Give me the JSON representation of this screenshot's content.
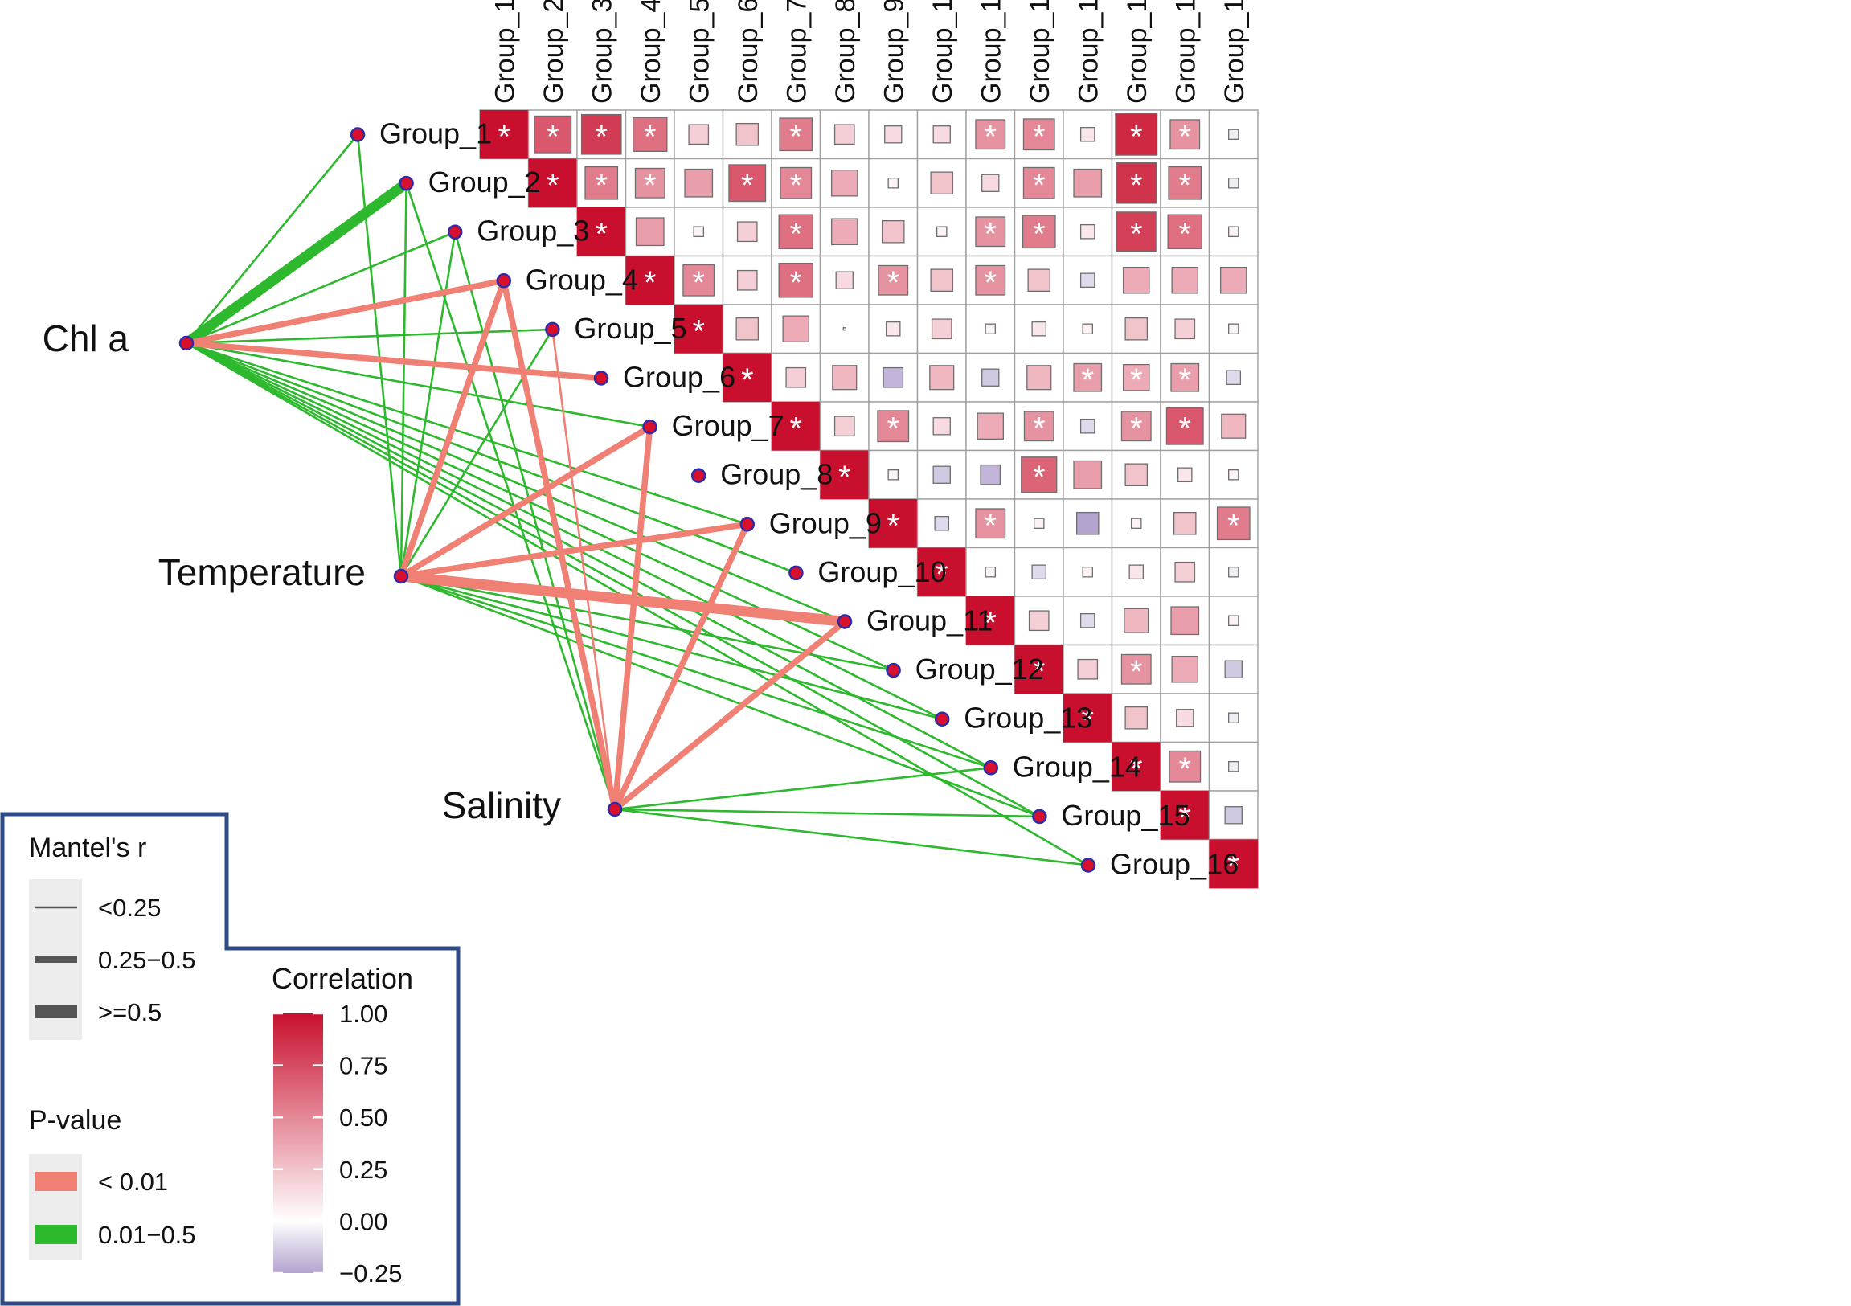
{
  "chart_data": {
    "type": "heatmap",
    "groups": [
      "Group_1",
      "Group_2",
      "Group_3",
      "Group_4",
      "Group_5",
      "Group_6",
      "Group_7",
      "Group_8",
      "Group_9",
      "Group_10",
      "Group_11",
      "Group_12",
      "Group_13",
      "Group_14",
      "Group_15",
      "Group_16"
    ],
    "correlation": [
      [
        1.0,
        0.7,
        0.82,
        0.6,
        0.2,
        0.25,
        0.55,
        0.2,
        0.15,
        0.15,
        0.45,
        0.5,
        0.1,
        0.9,
        0.45,
        -0.05
      ],
      [
        null,
        1.0,
        0.55,
        0.45,
        0.4,
        0.7,
        0.5,
        0.35,
        0.05,
        0.25,
        0.15,
        0.5,
        0.4,
        0.85,
        0.55,
        -0.05
      ],
      [
        null,
        null,
        1.0,
        0.4,
        0.05,
        0.2,
        0.6,
        0.35,
        0.25,
        0.05,
        0.45,
        0.55,
        0.1,
        0.8,
        0.6,
        0.05
      ],
      [
        null,
        null,
        null,
        1.0,
        0.5,
        0.2,
        0.6,
        0.15,
        0.45,
        0.25,
        0.45,
        0.25,
        -0.1,
        0.35,
        0.35,
        0.35
      ],
      [
        null,
        null,
        null,
        null,
        1.0,
        0.25,
        0.35,
        0.0,
        0.1,
        0.2,
        0.05,
        0.1,
        0.05,
        0.25,
        0.2,
        0.05
      ],
      [
        null,
        null,
        null,
        null,
        null,
        1.0,
        0.2,
        0.3,
        -0.2,
        0.3,
        -0.15,
        0.3,
        0.4,
        0.35,
        0.4,
        -0.1
      ],
      [
        null,
        null,
        null,
        null,
        null,
        null,
        1.0,
        0.2,
        0.5,
        0.15,
        0.35,
        0.45,
        -0.1,
        0.45,
        0.7,
        0.3
      ],
      [
        null,
        null,
        null,
        null,
        null,
        null,
        null,
        1.0,
        0.05,
        -0.15,
        -0.2,
        0.65,
        0.4,
        0.25,
        0.1,
        0.05
      ],
      [
        null,
        null,
        null,
        null,
        null,
        null,
        null,
        null,
        1.0,
        -0.1,
        0.45,
        0.05,
        -0.25,
        0.05,
        0.25,
        0.55
      ],
      [
        null,
        null,
        null,
        null,
        null,
        null,
        null,
        null,
        null,
        1.0,
        0.05,
        -0.1,
        0.05,
        0.1,
        0.2,
        -0.05
      ],
      [
        null,
        null,
        null,
        null,
        null,
        null,
        null,
        null,
        null,
        null,
        1.0,
        0.2,
        -0.1,
        0.3,
        0.4,
        0.05
      ],
      [
        null,
        null,
        null,
        null,
        null,
        null,
        null,
        null,
        null,
        null,
        null,
        1.0,
        0.2,
        0.45,
        0.35,
        -0.15
      ],
      [
        null,
        null,
        null,
        null,
        null,
        null,
        null,
        null,
        null,
        null,
        null,
        null,
        1.0,
        0.25,
        0.15,
        -0.05
      ],
      [
        null,
        null,
        null,
        null,
        null,
        null,
        null,
        null,
        null,
        null,
        null,
        null,
        null,
        1.0,
        0.5,
        -0.05
      ],
      [
        null,
        null,
        null,
        null,
        null,
        null,
        null,
        null,
        null,
        null,
        null,
        null,
        null,
        null,
        1.0,
        -0.15
      ],
      [
        null,
        null,
        null,
        null,
        null,
        null,
        null,
        null,
        null,
        null,
        null,
        null,
        null,
        null,
        null,
        1.0
      ]
    ],
    "significance_marker": "*",
    "significant": [
      [
        1,
        1,
        1,
        1,
        0,
        0,
        1,
        0,
        0,
        0,
        1,
        1,
        0,
        1,
        1,
        0
      ],
      [
        0,
        1,
        1,
        1,
        0,
        1,
        1,
        0,
        0,
        0,
        0,
        1,
        0,
        1,
        1,
        0
      ],
      [
        0,
        0,
        1,
        0,
        0,
        0,
        1,
        0,
        0,
        0,
        1,
        1,
        0,
        1,
        1,
        0
      ],
      [
        0,
        0,
        0,
        1,
        1,
        0,
        1,
        0,
        1,
        0,
        1,
        0,
        0,
        0,
        0,
        0
      ],
      [
        0,
        0,
        0,
        0,
        1,
        0,
        0,
        0,
        0,
        0,
        0,
        0,
        0,
        0,
        0,
        0
      ],
      [
        0,
        0,
        0,
        0,
        0,
        1,
        0,
        0,
        0,
        0,
        0,
        0,
        1,
        1,
        1,
        0
      ],
      [
        0,
        0,
        0,
        0,
        0,
        0,
        1,
        0,
        1,
        0,
        0,
        1,
        0,
        1,
        1,
        0
      ],
      [
        0,
        0,
        0,
        0,
        0,
        0,
        0,
        1,
        0,
        0,
        0,
        1,
        0,
        0,
        0,
        0
      ],
      [
        0,
        0,
        0,
        0,
        0,
        0,
        0,
        0,
        1,
        0,
        1,
        0,
        0,
        0,
        0,
        1
      ],
      [
        0,
        0,
        0,
        0,
        0,
        0,
        0,
        0,
        0,
        1,
        0,
        0,
        0,
        0,
        0,
        0
      ],
      [
        0,
        0,
        0,
        0,
        0,
        0,
        0,
        0,
        0,
        0,
        1,
        0,
        0,
        0,
        0,
        0
      ],
      [
        0,
        0,
        0,
        0,
        0,
        0,
        0,
        0,
        0,
        0,
        0,
        1,
        0,
        1,
        0,
        0
      ],
      [
        0,
        0,
        0,
        0,
        0,
        0,
        0,
        0,
        0,
        0,
        0,
        0,
        1,
        0,
        0,
        0
      ],
      [
        0,
        0,
        0,
        0,
        0,
        0,
        0,
        0,
        0,
        0,
        0,
        0,
        0,
        1,
        1,
        0
      ],
      [
        0,
        0,
        0,
        0,
        0,
        0,
        0,
        0,
        0,
        0,
        0,
        0,
        0,
        0,
        1,
        0
      ],
      [
        0,
        0,
        0,
        0,
        0,
        0,
        0,
        0,
        0,
        0,
        0,
        0,
        0,
        0,
        0,
        1
      ]
    ],
    "env_factors": [
      "Chl a",
      "Temperature",
      "Salinity"
    ],
    "mantel_links": [
      {
        "env": "Chl a",
        "group": 1,
        "size": "<0.25",
        "p": "0.01-0.5"
      },
      {
        "env": "Chl a",
        "group": 2,
        "size": ">=0.5",
        "p": "0.01-0.5"
      },
      {
        "env": "Chl a",
        "group": 3,
        "size": "<0.25",
        "p": "0.01-0.5"
      },
      {
        "env": "Chl a",
        "group": 4,
        "size": "0.25-0.5",
        "p": "<0.01"
      },
      {
        "env": "Chl a",
        "group": 5,
        "size": "<0.25",
        "p": "0.01-0.5"
      },
      {
        "env": "Chl a",
        "group": 6,
        "size": "0.25-0.5",
        "p": "<0.01"
      },
      {
        "env": "Chl a",
        "group": 7,
        "size": "<0.25",
        "p": "0.01-0.5"
      },
      {
        "env": "Chl a",
        "group": 9,
        "size": "<0.25",
        "p": "0.01-0.5"
      },
      {
        "env": "Chl a",
        "group": 10,
        "size": "<0.25",
        "p": "0.01-0.5"
      },
      {
        "env": "Chl a",
        "group": 11,
        "size": "<0.25",
        "p": "0.01-0.5"
      },
      {
        "env": "Chl a",
        "group": 12,
        "size": "<0.25",
        "p": "0.01-0.5"
      },
      {
        "env": "Chl a",
        "group": 13,
        "size": "<0.25",
        "p": "0.01-0.5"
      },
      {
        "env": "Chl a",
        "group": 14,
        "size": "<0.25",
        "p": "0.01-0.5"
      },
      {
        "env": "Chl a",
        "group": 15,
        "size": "<0.25",
        "p": "0.01-0.5"
      },
      {
        "env": "Chl a",
        "group": 16,
        "size": "<0.25",
        "p": "0.01-0.5"
      },
      {
        "env": "Temperature",
        "group": 1,
        "size": "<0.25",
        "p": "0.01-0.5"
      },
      {
        "env": "Temperature",
        "group": 2,
        "size": "<0.25",
        "p": "0.01-0.5"
      },
      {
        "env": "Temperature",
        "group": 3,
        "size": "<0.25",
        "p": "0.01-0.5"
      },
      {
        "env": "Temperature",
        "group": 4,
        "size": "0.25-0.5",
        "p": "<0.01"
      },
      {
        "env": "Temperature",
        "group": 5,
        "size": "<0.25",
        "p": "0.01-0.5"
      },
      {
        "env": "Temperature",
        "group": 7,
        "size": "0.25-0.5",
        "p": "<0.01"
      },
      {
        "env": "Temperature",
        "group": 9,
        "size": "0.25-0.5",
        "p": "<0.01"
      },
      {
        "env": "Temperature",
        "group": 11,
        "size": ">=0.5",
        "p": "<0.01"
      },
      {
        "env": "Temperature",
        "group": 12,
        "size": "<0.25",
        "p": "0.01-0.5"
      },
      {
        "env": "Temperature",
        "group": 13,
        "size": "<0.25",
        "p": "0.01-0.5"
      },
      {
        "env": "Temperature",
        "group": 14,
        "size": "<0.25",
        "p": "0.01-0.5"
      },
      {
        "env": "Temperature",
        "group": 15,
        "size": "<0.25",
        "p": "0.01-0.5"
      },
      {
        "env": "Salinity",
        "group": 2,
        "size": "<0.25",
        "p": "0.01-0.5"
      },
      {
        "env": "Salinity",
        "group": 3,
        "size": "<0.25",
        "p": "0.01-0.5"
      },
      {
        "env": "Salinity",
        "group": 4,
        "size": "0.25-0.5",
        "p": "<0.01"
      },
      {
        "env": "Salinity",
        "group": 5,
        "size": "<0.25",
        "p": "<0.01"
      },
      {
        "env": "Salinity",
        "group": 7,
        "size": "0.25-0.5",
        "p": "<0.01"
      },
      {
        "env": "Salinity",
        "group": 9,
        "size": "0.25-0.5",
        "p": "<0.01"
      },
      {
        "env": "Salinity",
        "group": 11,
        "size": "0.25-0.5",
        "p": "<0.01"
      },
      {
        "env": "Salinity",
        "group": 14,
        "size": "<0.25",
        "p": "0.01-0.5"
      },
      {
        "env": "Salinity",
        "group": 15,
        "size": "<0.25",
        "p": "0.01-0.5"
      },
      {
        "env": "Salinity",
        "group": 16,
        "size": "<0.25",
        "p": "0.01-0.5"
      }
    ],
    "colorbar": {
      "title": "Correlation",
      "range": [
        -0.25,
        1.0
      ],
      "ticks": [
        "1.00",
        "0.75",
        "0.50",
        "0.25",
        "0.00",
        "−0.25"
      ],
      "tick_values": [
        1.0,
        0.75,
        0.5,
        0.25,
        0.0,
        -0.25
      ],
      "high_color": "#C8102E",
      "mid_color": "#FFFFFF",
      "low_color": "#B3A3CF"
    }
  },
  "legend": {
    "mantel_title": "Mantel's r",
    "mantel_items": [
      "<0.25",
      "0.25−0.5",
      ">=0.5"
    ],
    "p_title": "P-value",
    "p_items": [
      {
        "label": "< 0.01",
        "color": "#F07F74"
      },
      {
        "label": "0.01−0.5",
        "color": "#2DB82D"
      }
    ]
  },
  "colors": {
    "link_significant": "#F07F74",
    "link_other": "#2DB82D",
    "node_fill": "#D8102E",
    "node_stroke": "#2E2BA8",
    "legend_border": "#2E4A87",
    "grid": "#9E9E9E"
  }
}
